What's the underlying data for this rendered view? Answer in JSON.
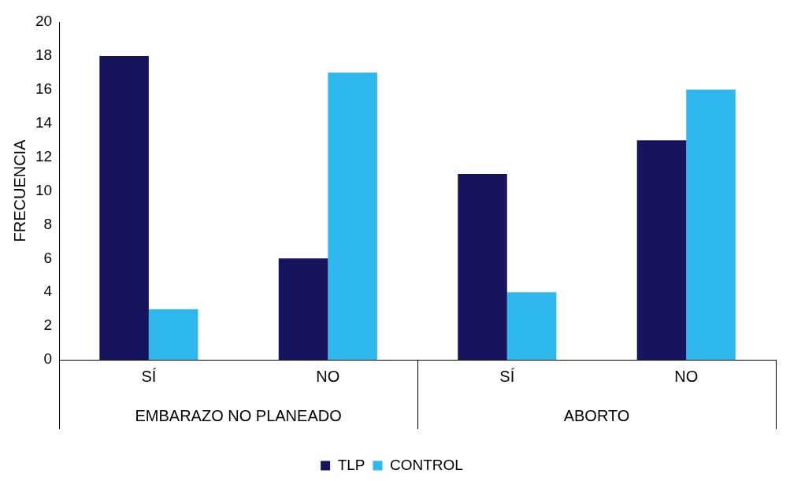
{
  "chart_data": {
    "type": "bar",
    "categories": [
      "SÍ",
      "NO",
      "SÍ",
      "NO"
    ],
    "series": [
      {
        "name": "TLP",
        "color": "#16145c",
        "values": [
          18,
          6,
          11,
          13
        ]
      },
      {
        "name": "CONTROL",
        "color": "#2fb8ee",
        "values": [
          3,
          17,
          4,
          16
        ]
      }
    ],
    "ylabel": "FRECUENCIA",
    "ylim": [
      0,
      20
    ],
    "yticks": [
      0,
      2,
      4,
      6,
      8,
      10,
      12,
      14,
      16,
      18,
      20
    ],
    "annotations": [
      "EMBARAZO NO PLANEADO",
      "ABORTO"
    ],
    "grid": false,
    "legend": "bottom"
  }
}
